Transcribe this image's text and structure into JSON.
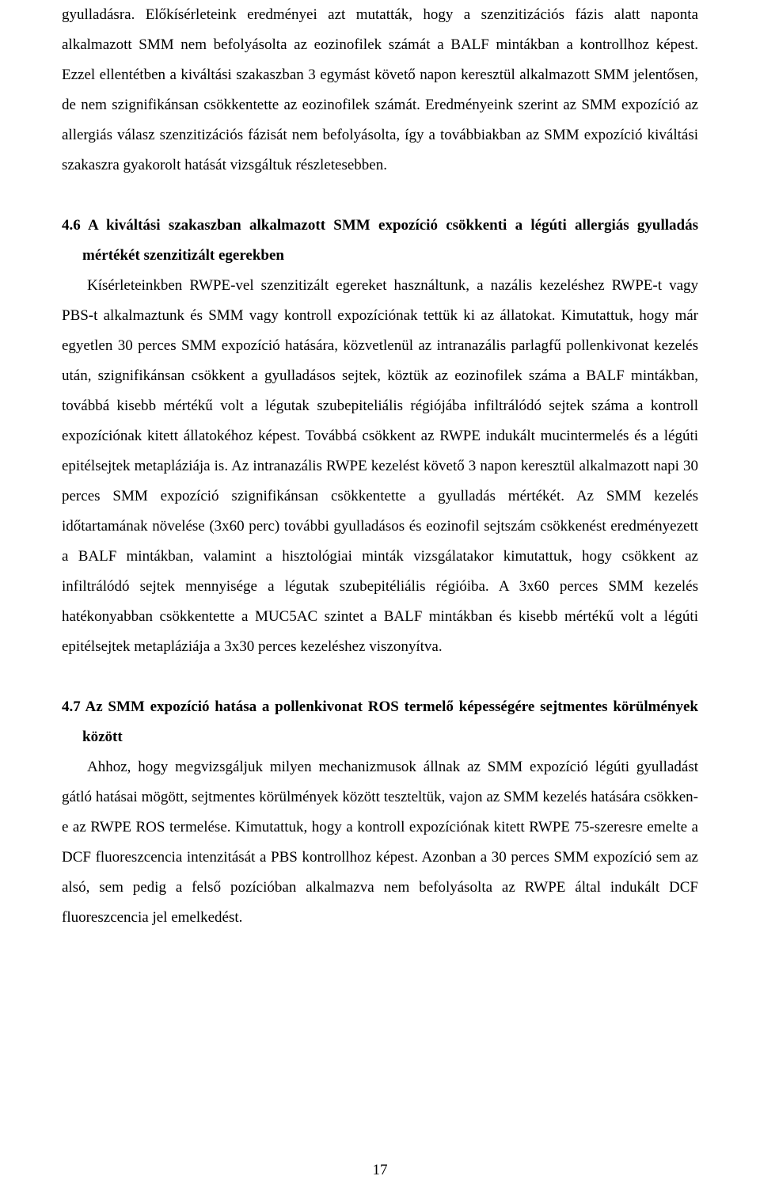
{
  "document": {
    "page_number": "17",
    "font_family": "Times New Roman",
    "text_color": "#000000",
    "background_color": "#ffffff",
    "paragraph_fontsize": 19,
    "line_height": 2.0,
    "intro_paragraph": "gyulladásra. Előkísérleteink eredményei azt mutatták, hogy a szenzitizációs fázis alatt naponta alkalmazott SMM nem befolyásolta az eozinofilek számát a BALF mintákban a kontrollhoz képest. Ezzel ellentétben a kiváltási szakaszban 3 egymást követő napon keresztül alkalmazott SMM jelentősen, de nem szignifikánsan csökkentette az eozinofilek számát. Eredményeink szerint az SMM expozíció az allergiás válasz szenzitizációs fázisát nem befolyásolta, így a továbbiakban az SMM expozíció kiváltási szakaszra gyakorolt hatását vizsgáltuk részletesebben.",
    "sections": [
      {
        "number": "4.6",
        "heading": "4.6 A kiváltási szakaszban alkalmazott SMM expozíció csökkenti a légúti allergiás gyulladás mértékét szenzitizált egerekben",
        "body": "Kísérleteinkben RWPE-vel szenzitizált egereket használtunk, a nazális kezeléshez RWPE-t vagy PBS-t alkalmaztunk és SMM vagy kontroll expozíciónak tettük ki az állatokat. Kimutattuk, hogy már egyetlen 30 perces SMM expozíció hatására, közvetlenül az intranazális parlagfű pollenkivonat kezelés után, szignifikánsan csökkent a gyulladásos sejtek, köztük az eozinofilek száma a BALF mintákban, továbbá kisebb mértékű volt a légutak szubepiteliális régiójába infiltrálódó sejtek száma a kontroll expozíciónak kitett állatokéhoz képest. Továbbá csökkent az RWPE indukált mucintermelés és a légúti epitélsejtek metapláziája is. Az intranazális RWPE kezelést követő 3 napon keresztül alkalmazott napi 30 perces SMM expozíció szignifikánsan csökkentette a gyulladás mértékét. Az SMM kezelés időtartamának növelése (3x60 perc) további gyulladásos és eozinofil sejtszám csökkenést eredményezett a BALF mintákban, valamint a hisztológiai minták vizsgálatakor kimutattuk, hogy csökkent az infiltrálódó sejtek mennyisége a légutak szubepitéliális régióiba. A 3x60 perces SMM kezelés hatékonyabban csökkentette a MUC5AC szintet a BALF mintákban és kisebb mértékű volt a légúti epitélsejtek metapláziája a 3x30 perces kezeléshez viszonyítva."
      },
      {
        "number": "4.7",
        "heading": "4.7 Az SMM expozíció hatása a pollenkivonat ROS termelő képességére sejtmentes körülmények között",
        "body": "Ahhoz, hogy megvizsgáljuk milyen mechanizmusok állnak az SMM expozíció légúti gyulladást gátló hatásai mögött, sejtmentes körülmények között teszteltük, vajon az SMM kezelés hatására csökken-e az RWPE ROS termelése. Kimutattuk, hogy a kontroll expozíciónak kitett RWPE 75-szeresre emelte a DCF fluoreszcencia intenzitását a PBS kontrollhoz képest. Azonban a 30 perces SMM expozíció sem az alsó, sem pedig a felső pozícióban alkalmazva nem befolyásolta az RWPE által indukált DCF fluoreszcencia jel emelkedést."
      }
    ]
  }
}
